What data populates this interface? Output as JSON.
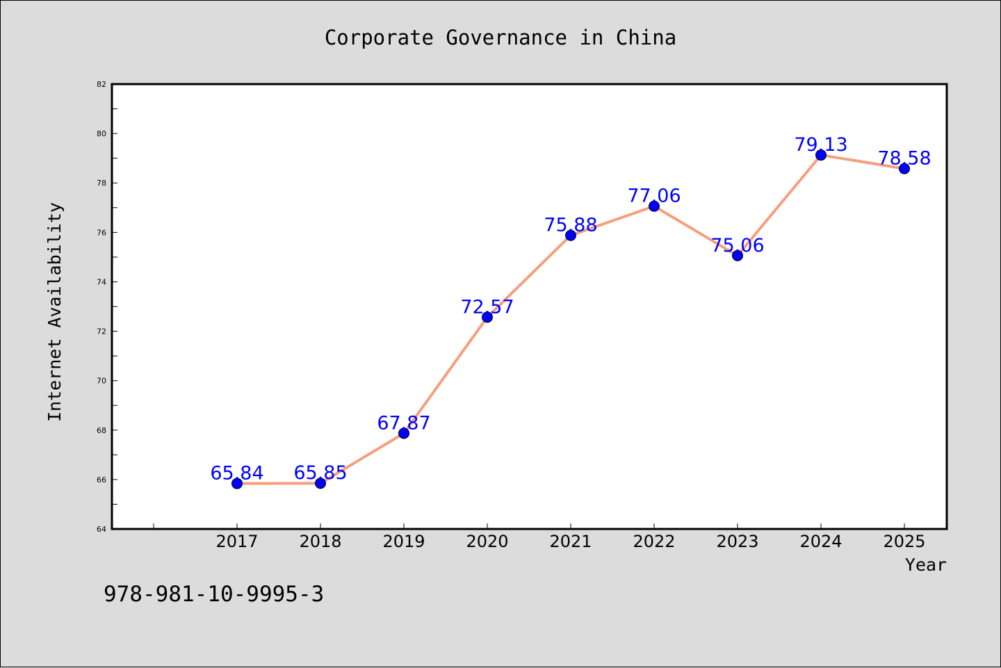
{
  "chart_data": {
    "type": "line",
    "title": "Corporate Governance in China",
    "xlabel": "Year",
    "ylabel": "Internet Availability",
    "x": [
      "2017",
      "2018",
      "2019",
      "2020",
      "2021",
      "2022",
      "2023",
      "2024",
      "2025"
    ],
    "series": [
      {
        "values": [
          65.84,
          65.85,
          67.87,
          72.57,
          75.88,
          77.06,
          75.06,
          79.13,
          78.58
        ],
        "line_color": "#f4a07e",
        "marker_color": "#0000ff"
      }
    ],
    "data_labels": [
      "65.84",
      "65.85",
      "67.87",
      "72.57",
      "75.88",
      "77.06",
      "75.06",
      "79.13",
      "78.58"
    ],
    "ylim": [
      64,
      82
    ],
    "yticks": [
      "64",
      "66",
      "68",
      "70",
      "72",
      "74",
      "76",
      "78",
      "80",
      "82"
    ],
    "grid": false,
    "legend": "none"
  },
  "footer": {
    "isbn": "978-981-10-9995-3"
  }
}
